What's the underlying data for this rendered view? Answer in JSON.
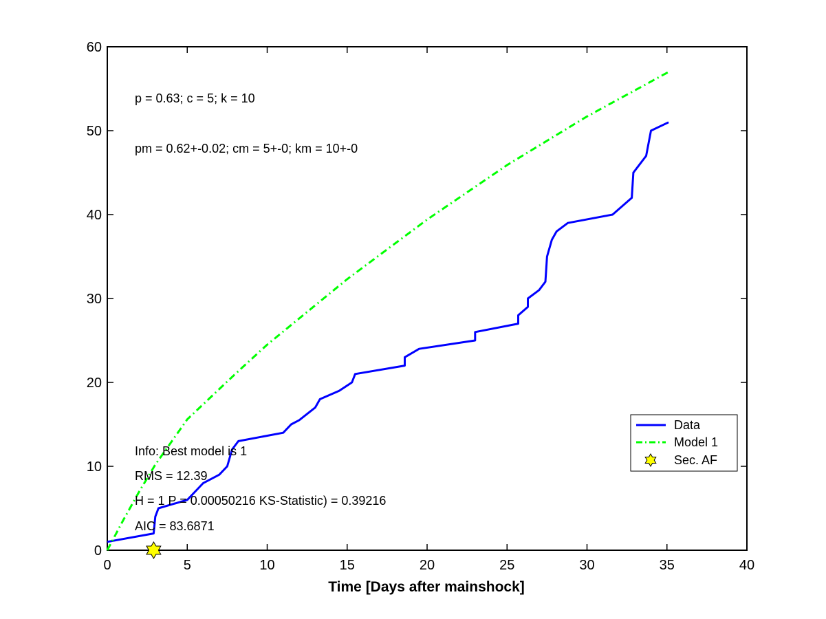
{
  "chart_data": {
    "type": "line",
    "title": "",
    "xlabel": "Time [Days after mainshock]",
    "ylabel": "",
    "xlim": [
      0,
      40
    ],
    "ylim": [
      0,
      60
    ],
    "xticks": [
      0,
      5,
      10,
      15,
      20,
      25,
      30,
      35,
      40
    ],
    "yticks": [
      0,
      10,
      20,
      30,
      40,
      50,
      60
    ],
    "grid": false,
    "legend_position": "bottom-right",
    "series": [
      {
        "name": "Data",
        "style": "solid",
        "color": "#0000ff",
        "points": [
          [
            0,
            1
          ],
          [
            2.9,
            2
          ],
          [
            3.0,
            4
          ],
          [
            3.2,
            5
          ],
          [
            5.0,
            6
          ],
          [
            5.5,
            7
          ],
          [
            6.0,
            8
          ],
          [
            7.0,
            9
          ],
          [
            7.5,
            10
          ],
          [
            7.8,
            12
          ],
          [
            8.2,
            13
          ],
          [
            11.0,
            14
          ],
          [
            11.5,
            15
          ],
          [
            12.0,
            15.5
          ],
          [
            13.0,
            17
          ],
          [
            13.3,
            18
          ],
          [
            14.5,
            19
          ],
          [
            15.3,
            20
          ],
          [
            15.5,
            21
          ],
          [
            18.6,
            22
          ],
          [
            18.6,
            23
          ],
          [
            19.5,
            24
          ],
          [
            23.0,
            25
          ],
          [
            23.0,
            26
          ],
          [
            25.7,
            27
          ],
          [
            25.7,
            28
          ],
          [
            26.3,
            29
          ],
          [
            26.3,
            30
          ],
          [
            27.0,
            31
          ],
          [
            27.4,
            32
          ],
          [
            27.5,
            35
          ],
          [
            27.8,
            37
          ],
          [
            28.1,
            38
          ],
          [
            28.8,
            39
          ],
          [
            31.6,
            40
          ],
          [
            32.2,
            41
          ],
          [
            32.8,
            42
          ],
          [
            32.9,
            45
          ],
          [
            33.3,
            46
          ],
          [
            33.7,
            47
          ],
          [
            34.0,
            50
          ],
          [
            35.1,
            51
          ]
        ]
      },
      {
        "name": "Model 1",
        "style": "dashdot",
        "color": "#00ff00",
        "points": [
          [
            0,
            0
          ],
          [
            1,
            3.6
          ],
          [
            2,
            7.0
          ],
          [
            3,
            10.2
          ],
          [
            5,
            15.6
          ],
          [
            8,
            21.0
          ],
          [
            10,
            24.5
          ],
          [
            15,
            32.3
          ],
          [
            20,
            39.4
          ],
          [
            25,
            45.9
          ],
          [
            30,
            51.7
          ],
          [
            35.1,
            57.0
          ]
        ]
      },
      {
        "name": "Sec. AF",
        "style": "marker-hexagram",
        "color": "#ffff00",
        "points": [
          [
            2.9,
            0
          ]
        ]
      }
    ],
    "annotations": [
      "p = 0.63; c = 5; k = 10",
      "pm = 0.62+-0.02; cm = 5+-0; km = 10+-0",
      "Info: Best model is 1",
      "RMS = 12.39",
      "H = 1 P = 0.00050216 KS-Statistic) = 0.39216",
      "AIC = 83.6871"
    ]
  }
}
